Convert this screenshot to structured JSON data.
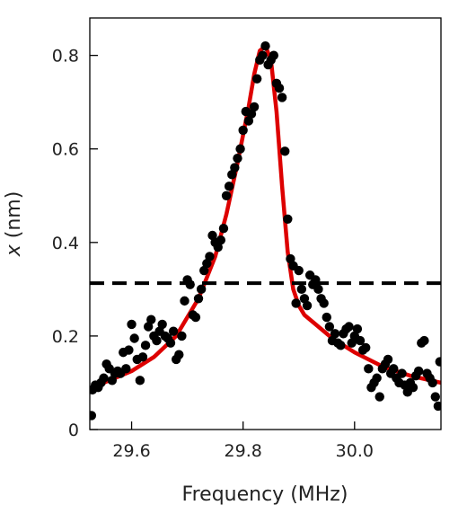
{
  "chart_data": {
    "type": "scatter",
    "xlabel": "Frequency (MHz)",
    "ylabel_var": "x",
    "ylabel_unit": " (nm)",
    "xlim": [
      29.525,
      30.155
    ],
    "ylim": [
      0,
      0.88
    ],
    "x_ticks": [
      {
        "value": 29.6,
        "label": "29.6"
      },
      {
        "value": 29.8,
        "label": "29.8"
      },
      {
        "value": 30.0,
        "label": "30.0"
      }
    ],
    "y_ticks": [
      {
        "value": 0,
        "label": "0"
      },
      {
        "value": 0.2,
        "label": "0.2"
      },
      {
        "value": 0.4,
        "label": "0.4"
      },
      {
        "value": 0.6,
        "label": "0.6"
      },
      {
        "value": 0.8,
        "label": "0.8"
      }
    ],
    "threshold": {
      "y": 0.313,
      "style": "dashed",
      "color": "#000000"
    },
    "fit": {
      "color": "#dd0000",
      "x": [
        29.53,
        29.56,
        29.6,
        29.64,
        29.68,
        29.72,
        29.75,
        29.77,
        29.79,
        29.81,
        29.82,
        29.83,
        29.84,
        29.85,
        29.86,
        29.87,
        29.88,
        29.89,
        29.9,
        29.91,
        29.93,
        29.96,
        30.0,
        30.05,
        30.1,
        30.155
      ],
      "y": [
        0.09,
        0.105,
        0.125,
        0.155,
        0.2,
        0.28,
        0.37,
        0.46,
        0.57,
        0.69,
        0.76,
        0.81,
        0.82,
        0.79,
        0.68,
        0.52,
        0.38,
        0.3,
        0.265,
        0.245,
        0.225,
        0.195,
        0.165,
        0.135,
        0.115,
        0.1
      ]
    },
    "points": {
      "color": "#000000",
      "x": [
        29.528,
        29.53,
        29.535,
        29.54,
        29.545,
        29.55,
        29.555,
        29.56,
        29.565,
        29.57,
        29.575,
        29.58,
        29.585,
        29.59,
        29.595,
        29.6,
        29.605,
        29.61,
        29.615,
        29.62,
        29.625,
        29.63,
        29.635,
        29.64,
        29.645,
        29.65,
        29.655,
        29.66,
        29.665,
        29.67,
        29.675,
        29.68,
        29.685,
        29.69,
        29.695,
        29.7,
        29.705,
        29.71,
        29.715,
        29.72,
        29.725,
        29.73,
        29.735,
        29.74,
        29.745,
        29.75,
        29.755,
        29.76,
        29.765,
        29.77,
        29.775,
        29.78,
        29.785,
        29.79,
        29.795,
        29.8,
        29.805,
        29.81,
        29.815,
        29.82,
        29.825,
        29.83,
        29.835,
        29.84,
        29.845,
        29.85,
        29.855,
        29.86,
        29.865,
        29.87,
        29.875,
        29.88,
        29.885,
        29.89,
        29.895,
        29.9,
        29.905,
        29.91,
        29.915,
        29.92,
        29.925,
        29.93,
        29.935,
        29.94,
        29.945,
        29.95,
        29.955,
        29.96,
        29.965,
        29.97,
        29.975,
        29.98,
        29.985,
        29.99,
        29.995,
        30.0,
        30.005,
        30.01,
        30.015,
        30.02,
        30.025,
        30.03,
        30.035,
        30.04,
        30.045,
        30.05,
        30.055,
        30.06,
        30.065,
        30.07,
        30.075,
        30.08,
        30.085,
        30.09,
        30.095,
        30.1,
        30.105,
        30.11,
        30.115,
        30.12,
        30.125,
        30.13,
        30.135,
        30.14,
        30.145,
        30.15,
        30.153
      ],
      "y": [
        0.03,
        0.085,
        0.095,
        0.09,
        0.1,
        0.11,
        0.14,
        0.13,
        0.105,
        0.12,
        0.125,
        0.12,
        0.165,
        0.13,
        0.17,
        0.225,
        0.195,
        0.15,
        0.105,
        0.155,
        0.18,
        0.22,
        0.235,
        0.2,
        0.19,
        0.21,
        0.225,
        0.2,
        0.195,
        0.185,
        0.21,
        0.15,
        0.16,
        0.2,
        0.275,
        0.32,
        0.31,
        0.245,
        0.24,
        0.28,
        0.3,
        0.34,
        0.355,
        0.37,
        0.415,
        0.4,
        0.39,
        0.405,
        0.43,
        0.5,
        0.52,
        0.545,
        0.56,
        0.58,
        0.6,
        0.64,
        0.68,
        0.66,
        0.675,
        0.69,
        0.75,
        0.79,
        0.8,
        0.82,
        0.78,
        0.79,
        0.8,
        0.74,
        0.73,
        0.71,
        0.595,
        0.45,
        0.365,
        0.35,
        0.27,
        0.34,
        0.3,
        0.28,
        0.265,
        0.33,
        0.31,
        0.32,
        0.3,
        0.28,
        0.27,
        0.24,
        0.22,
        0.19,
        0.205,
        0.185,
        0.18,
        0.205,
        0.215,
        0.22,
        0.185,
        0.2,
        0.215,
        0.19,
        0.17,
        0.175,
        0.13,
        0.09,
        0.1,
        0.11,
        0.07,
        0.13,
        0.14,
        0.15,
        0.12,
        0.13,
        0.11,
        0.1,
        0.12,
        0.095,
        0.08,
        0.1,
        0.09,
        0.115,
        0.125,
        0.185,
        0.19,
        0.12,
        0.11,
        0.1,
        0.07,
        0.05,
        0.145
      ]
    }
  }
}
